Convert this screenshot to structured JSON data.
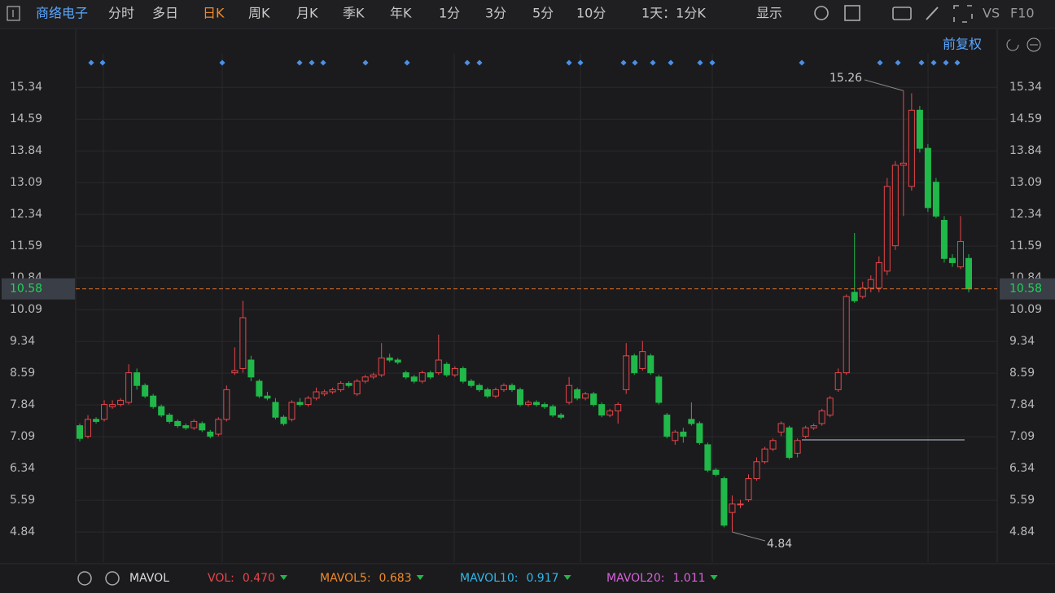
{
  "toolbar": {
    "stock": "商络电子",
    "tabs": [
      "分时",
      "多日",
      "日K",
      "周K",
      "月K",
      "季K",
      "年K",
      "1分",
      "3分",
      "5分",
      "10分"
    ],
    "active": "日K",
    "period": "1天：1分K",
    "display": "显示",
    "vs": "VS",
    "f10": "F10",
    "adjust": "前复权"
  },
  "chart_data": {
    "type": "candlestick",
    "candles": [
      [
        7.35,
        7.4,
        6.98,
        7.05
      ],
      [
        7.1,
        7.6,
        7.05,
        7.5
      ],
      [
        7.5,
        7.55,
        7.4,
        7.45
      ],
      [
        7.5,
        7.95,
        7.45,
        7.85
      ],
      [
        7.8,
        7.95,
        7.75,
        7.85
      ],
      [
        7.85,
        8.0,
        7.8,
        7.95
      ],
      [
        7.9,
        8.8,
        7.85,
        8.6
      ],
      [
        8.6,
        8.7,
        8.2,
        8.3
      ],
      [
        8.3,
        8.35,
        8.0,
        8.05
      ],
      [
        8.05,
        8.1,
        7.75,
        7.8
      ],
      [
        7.8,
        7.85,
        7.55,
        7.6
      ],
      [
        7.6,
        7.65,
        7.4,
        7.45
      ],
      [
        7.45,
        7.5,
        7.3,
        7.35
      ],
      [
        7.35,
        7.4,
        7.25,
        7.3
      ],
      [
        7.3,
        7.5,
        7.25,
        7.45
      ],
      [
        7.4,
        7.45,
        7.2,
        7.25
      ],
      [
        7.2,
        7.25,
        7.05,
        7.1
      ],
      [
        7.15,
        7.55,
        7.1,
        7.5
      ],
      [
        7.5,
        8.3,
        7.45,
        8.2
      ],
      [
        8.6,
        9.2,
        8.55,
        8.65
      ],
      [
        8.7,
        10.3,
        8.6,
        9.9
      ],
      [
        8.9,
        9.0,
        8.4,
        8.5
      ],
      [
        8.4,
        8.45,
        8.0,
        8.05
      ],
      [
        8.05,
        8.15,
        7.95,
        8.0
      ],
      [
        7.9,
        8.0,
        7.5,
        7.55
      ],
      [
        7.55,
        7.6,
        7.35,
        7.4
      ],
      [
        7.5,
        7.95,
        7.45,
        7.9
      ],
      [
        7.9,
        8.0,
        7.8,
        7.85
      ],
      [
        7.85,
        8.05,
        7.8,
        8.0
      ],
      [
        8.0,
        8.25,
        7.95,
        8.15
      ],
      [
        8.1,
        8.2,
        8.05,
        8.15
      ],
      [
        8.15,
        8.25,
        8.1,
        8.2
      ],
      [
        8.2,
        8.4,
        8.15,
        8.35
      ],
      [
        8.35,
        8.4,
        8.25,
        8.3
      ],
      [
        8.1,
        8.45,
        8.05,
        8.4
      ],
      [
        8.4,
        8.55,
        8.35,
        8.5
      ],
      [
        8.5,
        8.6,
        8.45,
        8.55
      ],
      [
        8.55,
        9.3,
        8.5,
        8.95
      ],
      [
        8.95,
        9.05,
        8.85,
        8.9
      ],
      [
        8.9,
        8.95,
        8.8,
        8.85
      ],
      [
        8.6,
        8.65,
        8.45,
        8.5
      ],
      [
        8.5,
        8.55,
        8.35,
        8.4
      ],
      [
        8.4,
        8.65,
        8.35,
        8.6
      ],
      [
        8.6,
        8.65,
        8.45,
        8.5
      ],
      [
        8.6,
        9.5,
        8.55,
        8.9
      ],
      [
        8.8,
        8.85,
        8.5,
        8.55
      ],
      [
        8.55,
        8.75,
        8.5,
        8.7
      ],
      [
        8.7,
        8.75,
        8.35,
        8.4
      ],
      [
        8.4,
        8.45,
        8.25,
        8.3
      ],
      [
        8.3,
        8.35,
        8.15,
        8.2
      ],
      [
        8.2,
        8.25,
        8.0,
        8.05
      ],
      [
        8.05,
        8.25,
        8.0,
        8.2
      ],
      [
        8.2,
        8.35,
        8.15,
        8.3
      ],
      [
        8.3,
        8.35,
        8.15,
        8.2
      ],
      [
        8.2,
        8.25,
        7.8,
        7.85
      ],
      [
        7.85,
        7.95,
        7.8,
        7.9
      ],
      [
        7.9,
        7.95,
        7.8,
        7.85
      ],
      [
        7.85,
        7.9,
        7.75,
        7.8
      ],
      [
        7.8,
        7.85,
        7.55,
        7.6
      ],
      [
        7.6,
        7.65,
        7.5,
        7.55
      ],
      [
        7.9,
        8.5,
        7.85,
        8.3
      ],
      [
        8.2,
        8.25,
        7.95,
        8.0
      ],
      [
        8.0,
        8.15,
        7.95,
        8.1
      ],
      [
        8.1,
        8.15,
        7.8,
        7.85
      ],
      [
        7.85,
        7.9,
        7.55,
        7.6
      ],
      [
        7.6,
        7.75,
        7.55,
        7.7
      ],
      [
        7.7,
        7.9,
        7.4,
        7.85
      ],
      [
        8.2,
        9.3,
        8.1,
        9.0
      ],
      [
        9.0,
        9.05,
        8.55,
        8.6
      ],
      [
        8.7,
        9.35,
        8.65,
        9.1
      ],
      [
        9.0,
        9.05,
        8.55,
        8.6
      ],
      [
        8.5,
        8.55,
        7.85,
        7.9
      ],
      [
        7.6,
        7.65,
        7.05,
        7.1
      ],
      [
        7.0,
        7.25,
        6.9,
        7.2
      ],
      [
        7.2,
        7.3,
        6.95,
        7.1
      ],
      [
        7.5,
        7.9,
        7.35,
        7.4
      ],
      [
        7.4,
        7.45,
        6.9,
        6.95
      ],
      [
        6.9,
        6.95,
        6.25,
        6.3
      ],
      [
        6.3,
        6.35,
        6.15,
        6.2
      ],
      [
        6.1,
        6.15,
        4.95,
        5.0
      ],
      [
        5.3,
        5.7,
        4.84,
        5.5
      ],
      [
        5.5,
        5.6,
        5.4,
        5.5
      ],
      [
        5.6,
        6.2,
        5.55,
        6.1
      ],
      [
        6.1,
        6.6,
        6.05,
        6.5
      ],
      [
        6.5,
        6.85,
        6.45,
        6.8
      ],
      [
        6.8,
        7.05,
        6.75,
        7.0
      ],
      [
        7.2,
        7.45,
        7.1,
        7.4
      ],
      [
        7.3,
        7.35,
        6.55,
        6.6
      ],
      [
        6.7,
        7.05,
        6.6,
        7.0
      ],
      [
        7.1,
        7.35,
        7.05,
        7.3
      ],
      [
        7.3,
        7.4,
        7.25,
        7.35
      ],
      [
        7.4,
        7.75,
        7.35,
        7.7
      ],
      [
        7.6,
        8.05,
        7.55,
        8.0
      ],
      [
        8.2,
        8.7,
        8.15,
        8.6
      ],
      [
        8.6,
        10.45,
        8.55,
        10.4
      ],
      [
        10.5,
        11.9,
        10.25,
        10.3
      ],
      [
        10.4,
        10.75,
        10.35,
        10.6
      ],
      [
        10.6,
        10.9,
        10.5,
        10.8
      ],
      [
        10.6,
        11.35,
        10.5,
        11.2
      ],
      [
        11.0,
        13.2,
        10.9,
        13.0
      ],
      [
        11.6,
        13.6,
        11.5,
        13.5
      ],
      [
        13.5,
        15.26,
        12.3,
        13.55
      ],
      [
        13.0,
        15.2,
        12.9,
        14.8
      ],
      [
        14.8,
        14.9,
        13.8,
        13.9
      ],
      [
        13.9,
        14.0,
        12.4,
        12.5
      ],
      [
        13.1,
        13.2,
        12.25,
        12.3
      ],
      [
        12.2,
        12.3,
        11.2,
        11.3
      ],
      [
        11.3,
        11.4,
        11.1,
        11.2
      ],
      [
        11.1,
        12.3,
        11.05,
        11.7
      ],
      [
        11.3,
        11.4,
        10.5,
        10.58
      ]
    ],
    "ylim": [
      4.13,
      16.71
    ],
    "yticks": [
      15.34,
      14.59,
      13.84,
      13.09,
      12.34,
      11.59,
      10.84,
      10.09,
      9.34,
      8.59,
      7.84,
      7.09,
      6.34,
      5.59,
      4.84
    ],
    "last_price": 10.58,
    "high": 15.26,
    "low": 4.84,
    "up_color": "#e8454a",
    "down_color": "#21b84a"
  },
  "indicator_bar": {
    "name": "MAVOL",
    "items": [
      {
        "label": "VOL:",
        "value": "0.470",
        "color": "#e8454a"
      },
      {
        "label": "MAVOL5:",
        "value": "0.683",
        "color": "#f08a2a"
      },
      {
        "label": "MAVOL10:",
        "value": "0.917",
        "color": "#31b7e8"
      },
      {
        "label": "MAVOL20:",
        "value": "1.011",
        "color": "#d662d8"
      }
    ]
  }
}
